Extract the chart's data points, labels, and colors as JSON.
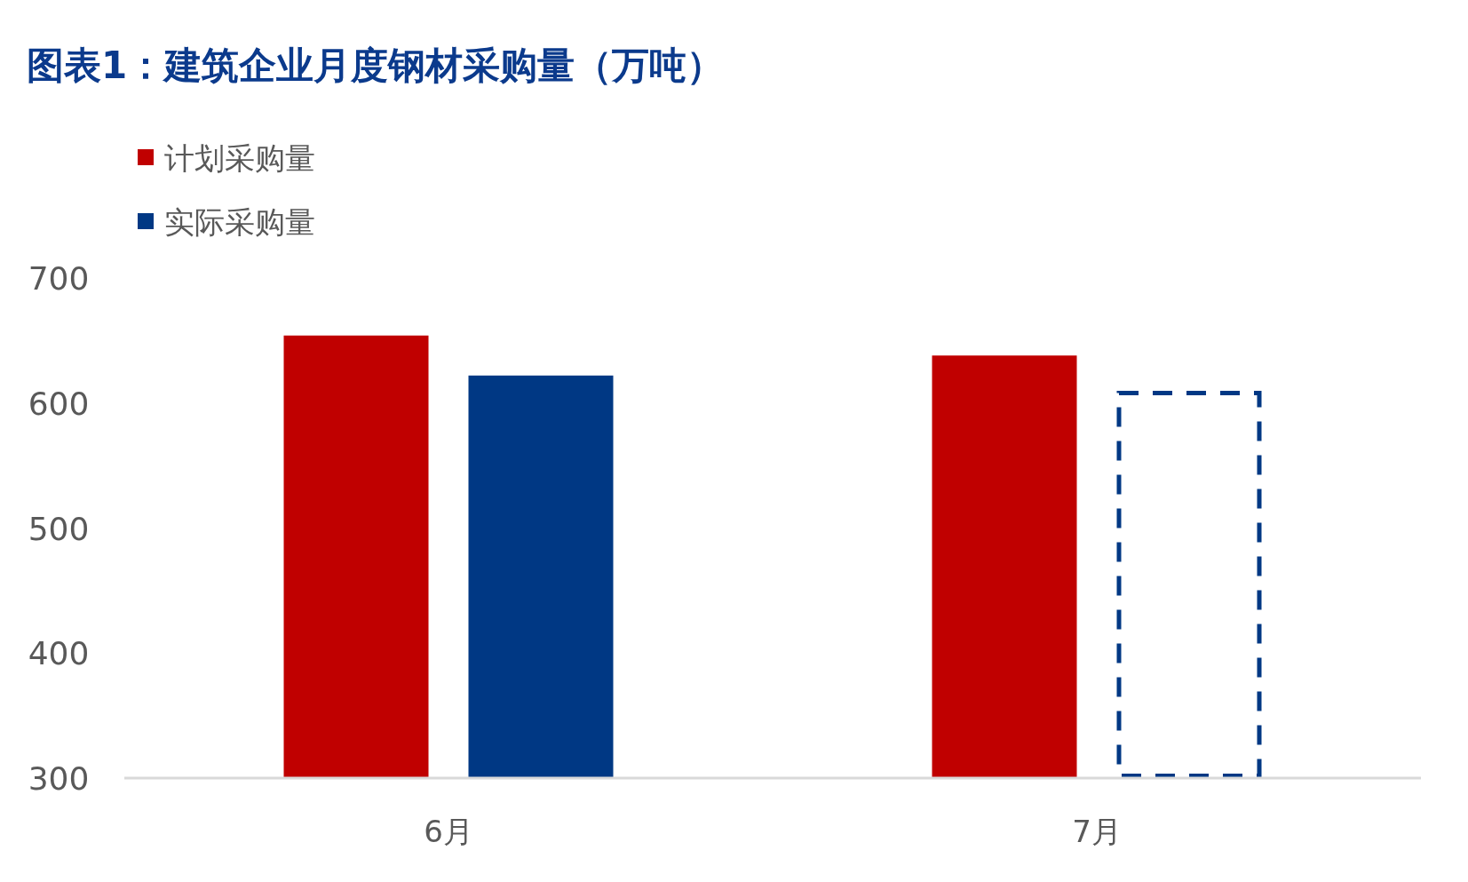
{
  "chart_data": {
    "type": "bar",
    "title": "图表1：建筑企业月度钢材采购量（万吨）",
    "categories": [
      "6月",
      "7月"
    ],
    "series": [
      {
        "name": "计划采购量",
        "color": "#c00000",
        "values": [
          654,
          638
        ]
      },
      {
        "name": "实际采购量",
        "color": "#003884",
        "values": [
          622,
          null
        ]
      },
      {
        "color": "#003884",
        "values": [
          null,
          608
        ],
        "line_style": "dashed"
      }
    ],
    "ylim": [
      300,
      700
    ],
    "yticks": [
      300,
      400,
      500,
      600,
      700
    ],
    "grid": false,
    "legend": "top left"
  }
}
